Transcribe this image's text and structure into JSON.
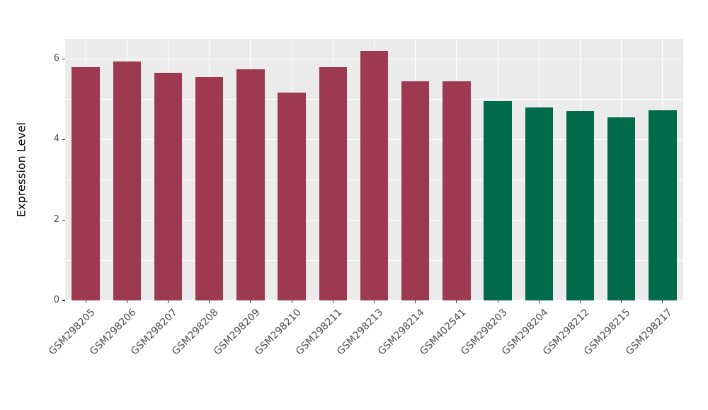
{
  "chart_data": {
    "type": "bar",
    "title": "",
    "xlabel": "",
    "ylabel": "Expression Level",
    "ylim": [
      0,
      6.5
    ],
    "yticks": [
      0,
      2,
      4,
      6
    ],
    "ytick_labels": [
      "0",
      "2",
      "4",
      "6"
    ],
    "minor_ticks": [
      1,
      3,
      5
    ],
    "grid": true,
    "legend": false,
    "categories": [
      "GSM298205",
      "GSM298206",
      "GSM298207",
      "GSM298208",
      "GSM298209",
      "GSM298210",
      "GSM298211",
      "GSM298213",
      "GSM298214",
      "GSM402541",
      "GSM298203",
      "GSM298204",
      "GSM298212",
      "GSM298215",
      "GSM298217"
    ],
    "values": [
      5.8,
      5.93,
      5.66,
      5.56,
      5.75,
      5.17,
      5.8,
      6.21,
      5.45,
      5.45,
      4.96,
      4.8,
      4.71,
      4.55,
      4.72
    ],
    "bar_groups": [
      0,
      0,
      0,
      0,
      0,
      0,
      0,
      0,
      0,
      0,
      1,
      1,
      1,
      1,
      1
    ],
    "palette": [
      "#9E3A4F",
      "#016B4A"
    ],
    "bar_width_ratio": 0.68,
    "style": {
      "panel_background": "#EBEBEB",
      "grid_color": "#FFFFFF",
      "tick_text_color": "#4D4D4D",
      "axis_title_color": "#000000",
      "figure_background": "#FFFFFF"
    }
  }
}
